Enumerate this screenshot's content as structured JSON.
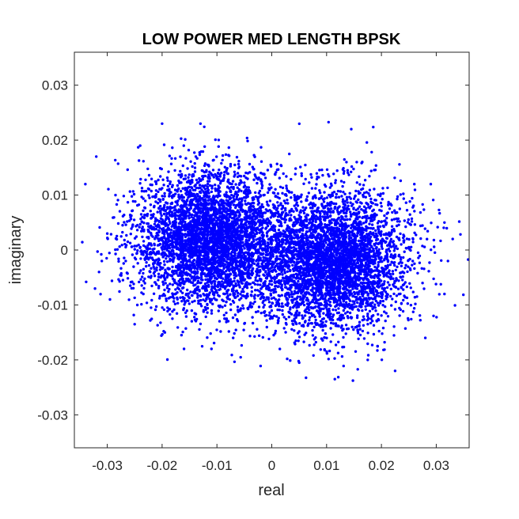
{
  "chart_data": {
    "type": "scatter",
    "title": "LOW POWER MED LENGTH BPSK",
    "xlabel": "real",
    "ylabel": "imaginary",
    "xlim": [
      -0.036,
      0.036
    ],
    "ylim": [
      -0.036,
      0.036
    ],
    "xticks": [
      -0.03,
      -0.02,
      -0.01,
      0,
      0.01,
      0.02,
      0.03
    ],
    "xtick_labels": [
      "-0.03",
      "-0.02",
      "-0.01",
      "0",
      "0.01",
      "0.02",
      "0.03"
    ],
    "yticks": [
      -0.03,
      -0.02,
      -0.01,
      0,
      0.01,
      0.02,
      0.03
    ],
    "ytick_labels": [
      "-0.03",
      "-0.02",
      "-0.01",
      "0",
      "0.01",
      "0.02",
      "0.03"
    ],
    "grid": false,
    "marker_color": "#0000ff",
    "clusters": [
      {
        "center": [
          -0.011,
          0.002
        ],
        "spread": [
          0.0068,
          0.0062
        ]
      },
      {
        "center": [
          0.011,
          -0.002
        ],
        "spread": [
          0.0068,
          0.0062
        ]
      }
    ],
    "series": [
      {
        "points": [
          [
            -0.032,
            0.017
          ],
          [
            -0.034,
            0.012
          ],
          [
            -0.0315,
            -0.004
          ],
          [
            -0.031,
            -0.002
          ],
          [
            -0.0295,
            -0.009
          ],
          [
            -0.025,
            -0.0135
          ],
          [
            -0.02,
            0.023
          ],
          [
            -0.013,
            0.023
          ],
          [
            -0.016,
            -0.018
          ],
          [
            -0.011,
            -0.018
          ],
          [
            -0.0195,
            -0.015
          ],
          [
            -0.024,
            0.019
          ],
          [
            0.0145,
            0.022
          ],
          [
            0.033,
            0.002
          ],
          [
            0.0315,
            -0.008
          ],
          [
            0.0295,
            -0.012
          ],
          [
            0.028,
            -0.016
          ],
          [
            0.0115,
            -0.0235
          ],
          [
            0.005,
            -0.0205
          ],
          [
            0.0225,
            -0.022
          ],
          [
            0.0175,
            -0.02
          ],
          [
            0.0155,
            0.016
          ],
          [
            0.026,
            0.012
          ],
          [
            0.029,
            0.012
          ],
          [
            0.0315,
            0.005
          ],
          [
            -0.0285,
            0.01
          ],
          [
            -0.03,
            0.003
          ],
          [
            0.0275,
            -0.006
          ]
        ]
      }
    ]
  }
}
